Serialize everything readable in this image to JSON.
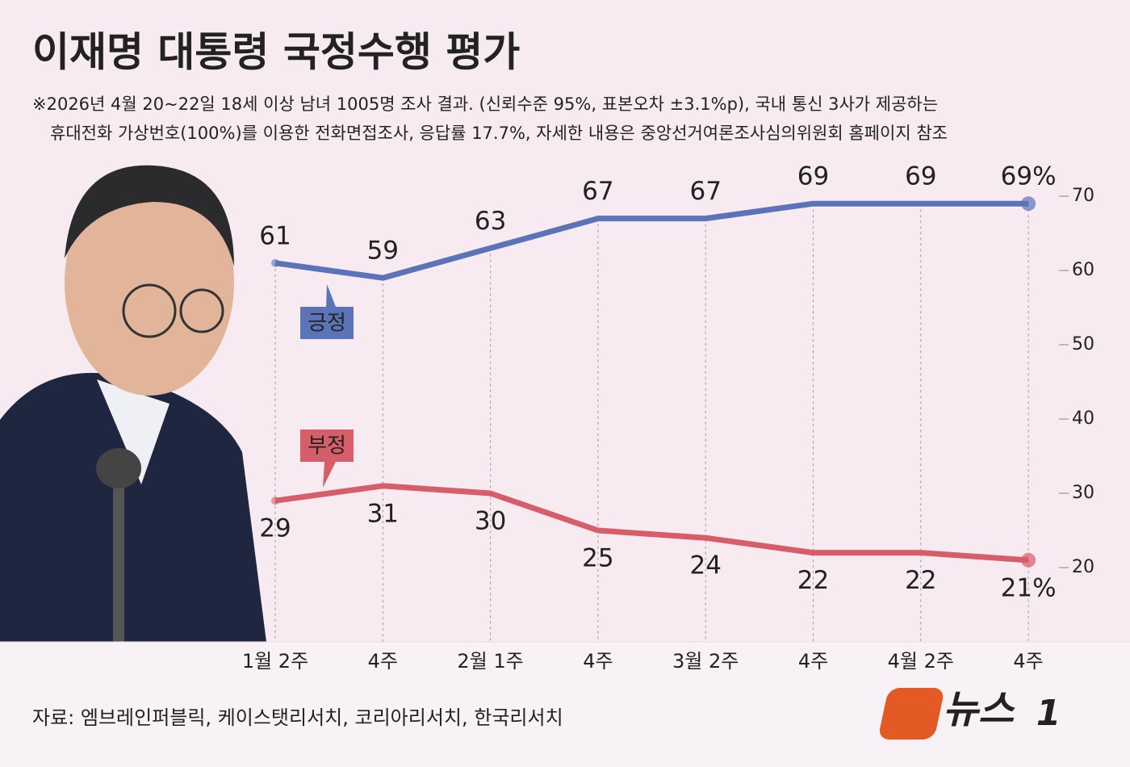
{
  "header": {
    "title": "이재명 대통령 국정수행 평가",
    "note": [
      "※2026년 4월 20~22일 18세 이상 남녀 1005명 조사 결과. (신뢰수준 95%, 표본오차 ±3.1%p), 국내 통신 3사가 제공하는",
      "휴대전화 가상번호(100%)를 이용한 전화면접조사, 응답률 17.7%, 자세한 내용은 중앙선거여론조사심의위원회 홈페이지 참조"
    ]
  },
  "chart_data": {
    "type": "line",
    "categories": [
      "1월 2주",
      "4주",
      "2월 1주",
      "4주",
      "3월 2주",
      "4주",
      "4월 2주",
      "4주"
    ],
    "series": [
      {
        "name": "긍정",
        "color": "#5b73b7",
        "values": [
          61,
          59,
          63,
          67,
          67,
          69,
          69,
          69
        ],
        "value_labels": [
          "61",
          "59",
          "63",
          "67",
          "67",
          "69",
          "69",
          "69%"
        ]
      },
      {
        "name": "부정",
        "color": "#d65d6a",
        "values": [
          29,
          31,
          30,
          25,
          24,
          22,
          22,
          21
        ],
        "value_labels": [
          "29",
          "31",
          "30",
          "25",
          "24",
          "22",
          "22",
          "21%"
        ]
      }
    ],
    "ylim": [
      10,
      72
    ],
    "yticks": [
      20,
      30,
      40,
      50,
      60,
      70
    ],
    "grid": false
  },
  "source": "자료: 엠브레인퍼블릭, 케이스탯리서치, 코리아리서치, 한국리서치",
  "logo": {
    "text": "뉴스",
    "mark": "1"
  }
}
